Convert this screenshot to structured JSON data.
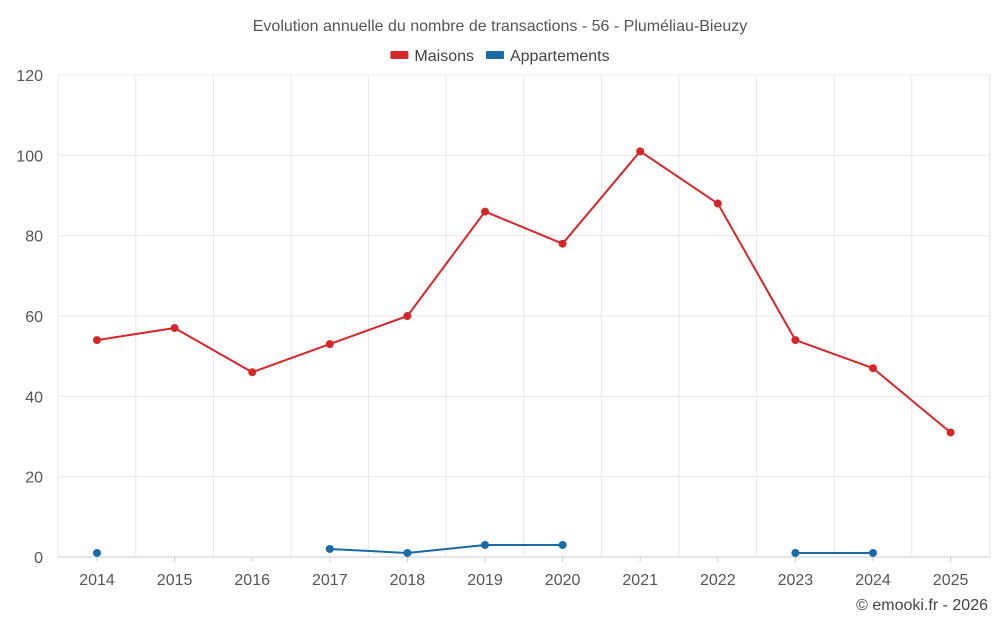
{
  "chart_data": {
    "type": "line",
    "title": "Evolution annuelle du nombre de transactions - 56 - Pluméliau-Bieuzy",
    "xlabel": "",
    "ylabel": "",
    "categories": [
      "2014",
      "2015",
      "2016",
      "2017",
      "2018",
      "2019",
      "2020",
      "2021",
      "2022",
      "2023",
      "2024",
      "2025"
    ],
    "ylim": [
      0,
      120
    ],
    "yticks": [
      0,
      20,
      40,
      60,
      80,
      100,
      120
    ],
    "grid": true,
    "legend_position": "top-center",
    "series": [
      {
        "name": "Maisons",
        "color": "#d62728",
        "values": [
          54,
          57,
          46,
          53,
          60,
          86,
          78,
          101,
          88,
          54,
          47,
          31
        ]
      },
      {
        "name": "Appartements",
        "color": "#1a6aa6",
        "values": [
          1,
          null,
          null,
          2,
          1,
          3,
          3,
          null,
          null,
          1,
          1,
          null
        ]
      }
    ]
  },
  "credit": "© emooki.fr - 2026"
}
